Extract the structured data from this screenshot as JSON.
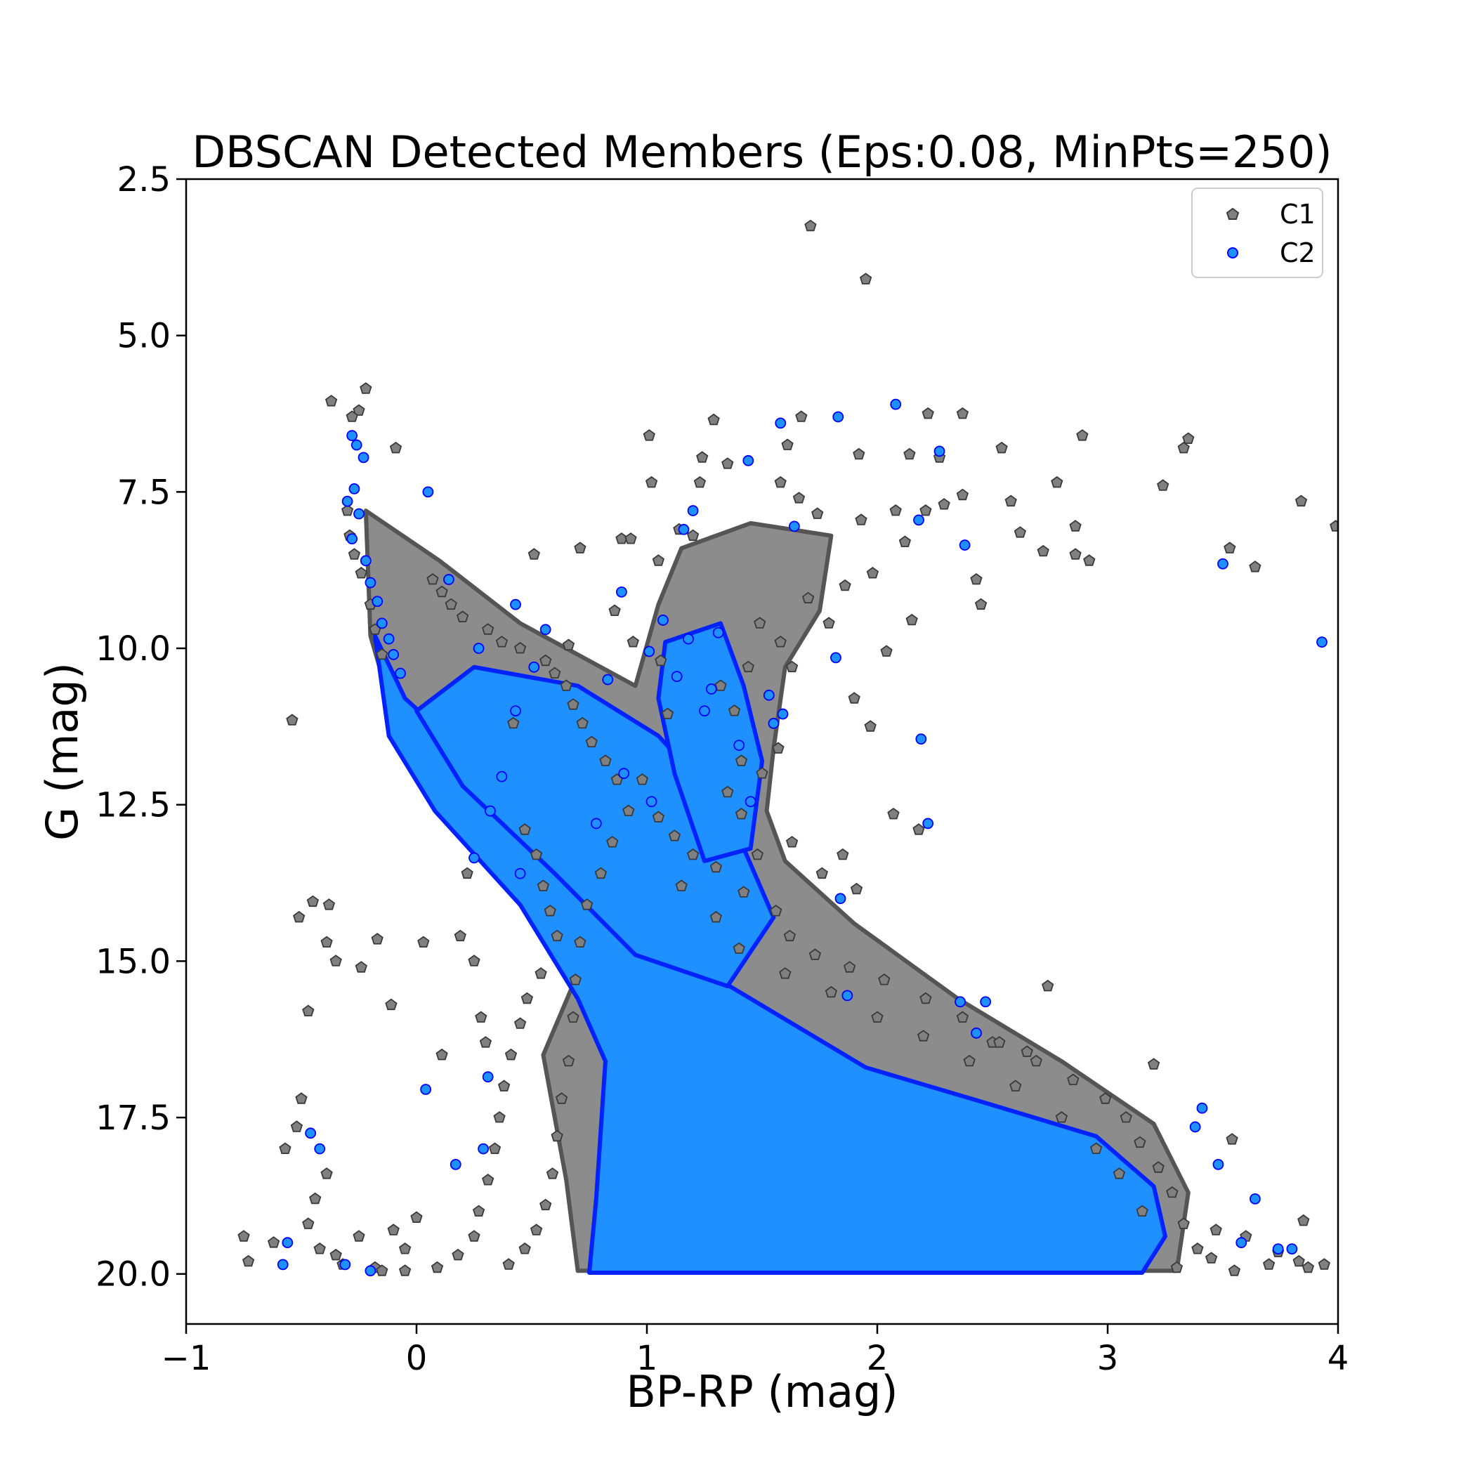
{
  "chart_data": {
    "type": "scatter",
    "title": "DBSCAN Detected Members (Eps:0.08, MinPts=250)",
    "xlabel": "BP-RP (mag)",
    "ylabel": "G (mag)",
    "xlim": [
      -1,
      4
    ],
    "ylim": [
      20.8,
      2.5
    ],
    "y_inverted": true,
    "grid": false,
    "legend_position": "top-right",
    "x_ticks": [
      -1,
      0,
      1,
      2,
      3,
      4
    ],
    "x_tick_labels": [
      "−1",
      "0",
      "1",
      "2",
      "3",
      "4"
    ],
    "y_ticks": [
      2.5,
      5.0,
      7.5,
      10.0,
      12.5,
      15.0,
      17.5,
      20.0
    ],
    "y_tick_labels": [
      "2.5",
      "5.0",
      "7.5",
      "10.0",
      "12.5",
      "15.0",
      "17.5",
      "20.0"
    ],
    "series": [
      {
        "name": "C1",
        "marker": "pentagon",
        "color": "#808080",
        "edgecolor": "#3a3a3a",
        "points": [
          [
            -0.37,
            6.05
          ],
          [
            -0.22,
            5.85
          ],
          [
            -0.25,
            6.2
          ],
          [
            -0.28,
            6.3
          ],
          [
            -0.09,
            6.8
          ],
          [
            1.71,
            3.25
          ],
          [
            1.95,
            4.1
          ],
          [
            1.01,
            6.6
          ],
          [
            1.29,
            6.35
          ],
          [
            1.67,
            6.3
          ],
          [
            2.22,
            6.25
          ],
          [
            2.37,
            6.25
          ],
          [
            2.89,
            6.6
          ],
          [
            3.35,
            6.65
          ],
          [
            3.33,
            6.8
          ],
          [
            2.54,
            6.8
          ],
          [
            1.24,
            6.95
          ],
          [
            1.35,
            7.05
          ],
          [
            1.61,
            6.75
          ],
          [
            1.92,
            6.9
          ],
          [
            2.14,
            6.9
          ],
          [
            2.27,
            6.95
          ],
          [
            1.02,
            7.35
          ],
          [
            1.23,
            7.35
          ],
          [
            1.58,
            7.35
          ],
          [
            3.24,
            7.4
          ],
          [
            2.78,
            7.35
          ],
          [
            3.84,
            7.65
          ],
          [
            3.99,
            8.05
          ],
          [
            2.58,
            7.65
          ],
          [
            2.62,
            8.15
          ],
          [
            2.72,
            8.45
          ],
          [
            2.86,
            8.05
          ],
          [
            2.92,
            8.6
          ],
          [
            2.86,
            8.5
          ],
          [
            3.53,
            8.4
          ],
          [
            3.64,
            8.7
          ],
          [
            0.71,
            8.4
          ],
          [
            0.51,
            8.5
          ],
          [
            0.89,
            8.25
          ],
          [
            1.14,
            8.1
          ],
          [
            1.2,
            8.2
          ],
          [
            2.45,
            9.3
          ],
          [
            2.43,
            8.9
          ],
          [
            2.15,
            9.55
          ],
          [
            0.42,
            11.2
          ],
          [
            0.66,
            9.95
          ],
          [
            2.04,
            10.05
          ],
          [
            1.9,
            10.8
          ],
          [
            1.97,
            11.25
          ],
          [
            2.07,
            12.65
          ],
          [
            2.18,
            12.9
          ],
          [
            1.41,
            12.65
          ],
          [
            1.48,
            13.3
          ],
          [
            1.63,
            13.1
          ],
          [
            1.76,
            13.6
          ],
          [
            1.85,
            13.3
          ],
          [
            1.91,
            13.85
          ],
          [
            -0.54,
            11.15
          ],
          [
            -0.51,
            14.3
          ],
          [
            -0.45,
            14.05
          ],
          [
            -0.38,
            14.1
          ],
          [
            -0.39,
            14.7
          ],
          [
            -0.35,
            15.0
          ],
          [
            -0.17,
            14.65
          ],
          [
            -0.24,
            15.1
          ],
          [
            0.03,
            14.7
          ],
          [
            -0.47,
            15.8
          ],
          [
            -0.11,
            15.7
          ],
          [
            0.11,
            16.5
          ],
          [
            2.5,
            16.3
          ],
          [
            2.65,
            16.45
          ],
          [
            2.74,
            15.4
          ],
          [
            3.2,
            16.65
          ],
          [
            -0.5,
            17.2
          ],
          [
            -0.52,
            17.65
          ],
          [
            -0.57,
            18.0
          ],
          [
            -0.75,
            19.4
          ],
          [
            -0.62,
            19.5
          ],
          [
            -0.73,
            19.8
          ],
          [
            3.54,
            17.85
          ],
          [
            3.85,
            19.15
          ],
          [
            3.94,
            19.85
          ],
          [
            3.87,
            19.9
          ],
          [
            3.74,
            19.65
          ],
          [
            3.83,
            19.8
          ],
          [
            3.47,
            19.3
          ],
          [
            3.55,
            19.95
          ],
          [
            0.93,
            8.25
          ],
          [
            1.05,
            8.6
          ],
          [
            0.86,
            9.4
          ],
          [
            0.94,
            9.9
          ],
          [
            1.06,
            10.2
          ],
          [
            1.09,
            11.05
          ],
          [
            1.66,
            7.6
          ],
          [
            1.74,
            7.85
          ],
          [
            1.93,
            7.95
          ],
          [
            2.08,
            7.8
          ],
          [
            2.12,
            8.3
          ],
          [
            2.21,
            7.8
          ],
          [
            2.29,
            7.7
          ],
          [
            2.37,
            7.55
          ],
          [
            -0.3,
            7.8
          ],
          [
            -0.29,
            8.2
          ],
          [
            -0.27,
            8.5
          ],
          [
            -0.24,
            8.8
          ],
          [
            -0.2,
            9.3
          ],
          [
            -0.18,
            9.7
          ],
          [
            -0.15,
            10.1
          ],
          [
            0.07,
            8.9
          ],
          [
            0.11,
            9.1
          ],
          [
            0.15,
            9.3
          ],
          [
            0.2,
            9.5
          ],
          [
            0.31,
            9.7
          ],
          [
            0.37,
            9.9
          ],
          [
            0.45,
            10.0
          ],
          [
            0.56,
            10.2
          ],
          [
            0.6,
            10.4
          ],
          [
            0.65,
            10.6
          ],
          [
            0.68,
            10.9
          ],
          [
            0.72,
            11.2
          ],
          [
            0.76,
            11.5
          ],
          [
            0.82,
            11.8
          ],
          [
            0.87,
            12.1
          ],
          [
            1.05,
            12.7
          ],
          [
            1.12,
            13.0
          ],
          [
            1.2,
            13.3
          ],
          [
            1.3,
            13.5
          ],
          [
            1.42,
            13.9
          ],
          [
            1.56,
            14.2
          ],
          [
            1.62,
            14.6
          ],
          [
            1.73,
            14.9
          ],
          [
            1.88,
            15.1
          ],
          [
            2.03,
            15.3
          ],
          [
            2.21,
            15.6
          ],
          [
            2.37,
            15.9
          ],
          [
            2.53,
            16.3
          ],
          [
            2.69,
            16.6
          ],
          [
            2.85,
            16.9
          ],
          [
            2.99,
            17.2
          ],
          [
            3.08,
            17.5
          ],
          [
            3.14,
            17.9
          ],
          [
            3.22,
            18.3
          ],
          [
            3.28,
            18.7
          ],
          [
            3.33,
            19.2
          ],
          [
            3.39,
            19.6
          ],
          [
            3.3,
            19.9
          ],
          [
            0.47,
            12.9
          ],
          [
            0.52,
            13.3
          ],
          [
            0.55,
            13.8
          ],
          [
            0.58,
            14.2
          ],
          [
            0.61,
            14.6
          ],
          [
            0.54,
            15.2
          ],
          [
            0.48,
            15.6
          ],
          [
            0.45,
            16.0
          ],
          [
            0.41,
            16.5
          ],
          [
            0.38,
            17.0
          ],
          [
            0.36,
            17.5
          ],
          [
            0.34,
            18.0
          ],
          [
            0.31,
            18.5
          ],
          [
            0.27,
            19.0
          ],
          [
            0.25,
            19.4
          ],
          [
            0.18,
            19.7
          ],
          [
            0.09,
            19.9
          ],
          [
            -0.05,
            19.95
          ],
          [
            -0.18,
            19.9
          ],
          [
            -0.32,
            19.85
          ],
          [
            -0.42,
            19.6
          ],
          [
            -0.47,
            19.2
          ],
          [
            -0.44,
            18.8
          ],
          [
            -0.39,
            18.4
          ],
          [
            0.28,
            15.9
          ],
          [
            0.3,
            16.3
          ],
          [
            0.25,
            15.0
          ],
          [
            0.19,
            14.6
          ],
          [
            0.22,
            13.6
          ],
          [
            1.32,
            10.6
          ],
          [
            1.38,
            11.0
          ],
          [
            1.41,
            11.8
          ],
          [
            1.35,
            12.3
          ],
          [
            1.5,
            12.0
          ],
          [
            1.57,
            11.6
          ],
          [
            1.44,
            10.3
          ],
          [
            1.49,
            9.6
          ],
          [
            1.58,
            9.9
          ],
          [
            1.63,
            10.3
          ],
          [
            1.7,
            9.2
          ],
          [
            1.79,
            9.6
          ],
          [
            1.86,
            9.0
          ],
          [
            1.98,
            8.8
          ],
          [
            0.98,
            12.1
          ],
          [
            0.92,
            12.6
          ],
          [
            0.85,
            13.1
          ],
          [
            0.8,
            13.6
          ],
          [
            0.74,
            14.1
          ],
          [
            0.71,
            14.7
          ],
          [
            0.69,
            15.3
          ],
          [
            0.68,
            15.9
          ],
          [
            0.66,
            16.6
          ],
          [
            0.63,
            17.2
          ],
          [
            0.61,
            17.8
          ],
          [
            0.59,
            18.4
          ],
          [
            0.56,
            18.9
          ],
          [
            0.52,
            19.3
          ],
          [
            0.47,
            19.6
          ],
          [
            0.4,
            19.85
          ],
          [
            -0.05,
            19.6
          ],
          [
            -0.1,
            19.3
          ],
          [
            0.0,
            19.1
          ],
          [
            -0.25,
            19.4
          ],
          [
            -0.35,
            19.7
          ],
          [
            -0.15,
            19.95
          ],
          [
            3.6,
            19.4
          ],
          [
            3.7,
            19.85
          ],
          [
            3.45,
            19.75
          ],
          [
            2.95,
            18.0
          ],
          [
            3.05,
            18.4
          ],
          [
            3.15,
            19.0
          ],
          [
            2.8,
            17.5
          ],
          [
            2.6,
            17.0
          ],
          [
            2.4,
            16.6
          ],
          [
            2.2,
            16.2
          ],
          [
            2.0,
            15.9
          ],
          [
            1.8,
            15.5
          ],
          [
            1.6,
            15.2
          ],
          [
            1.4,
            14.8
          ],
          [
            1.3,
            14.3
          ],
          [
            1.15,
            13.8
          ]
        ]
      },
      {
        "name": "C2",
        "marker": "circle",
        "color": "#1e90ff",
        "edgecolor": "#0000ff",
        "points": [
          [
            -0.28,
            6.6
          ],
          [
            -0.26,
            6.75
          ],
          [
            -0.23,
            6.95
          ],
          [
            -0.3,
            7.65
          ],
          [
            -0.27,
            7.45
          ],
          [
            -0.25,
            7.85
          ],
          [
            -0.28,
            8.25
          ],
          [
            -0.22,
            8.6
          ],
          [
            -0.2,
            8.95
          ],
          [
            -0.17,
            9.25
          ],
          [
            -0.15,
            9.6
          ],
          [
            -0.12,
            9.85
          ],
          [
            -0.1,
            10.1
          ],
          [
            -0.07,
            10.4
          ],
          [
            0.05,
            7.5
          ],
          [
            1.58,
            6.4
          ],
          [
            1.83,
            6.3
          ],
          [
            2.08,
            6.1
          ],
          [
            2.27,
            6.85
          ],
          [
            1.44,
            7.0
          ],
          [
            1.2,
            7.8
          ],
          [
            1.16,
            8.1
          ],
          [
            1.64,
            8.05
          ],
          [
            2.38,
            8.35
          ],
          [
            0.43,
            9.3
          ],
          [
            0.89,
            9.1
          ],
          [
            0.14,
            8.9
          ],
          [
            3.5,
            8.65
          ],
          [
            3.93,
            9.9
          ],
          [
            1.82,
            10.15
          ],
          [
            2.19,
            11.45
          ],
          [
            2.22,
            12.8
          ],
          [
            2.18,
            7.95
          ],
          [
            0.04,
            17.05
          ],
          [
            -0.46,
            17.75
          ],
          [
            -0.42,
            18.0
          ],
          [
            -0.56,
            19.5
          ],
          [
            -0.58,
            19.85
          ],
          [
            -0.31,
            19.85
          ],
          [
            -0.2,
            19.95
          ],
          [
            3.41,
            17.35
          ],
          [
            3.38,
            17.65
          ],
          [
            3.48,
            18.25
          ],
          [
            3.64,
            18.8
          ],
          [
            3.74,
            19.6
          ],
          [
            3.58,
            19.5
          ],
          [
            3.8,
            19.6
          ],
          [
            0.31,
            16.85
          ],
          [
            0.29,
            18.0
          ],
          [
            0.17,
            18.25
          ],
          [
            0.25,
            13.35
          ],
          [
            0.45,
            13.6
          ],
          [
            2.47,
            15.65
          ],
          [
            2.43,
            16.15
          ],
          [
            2.36,
            15.65
          ],
          [
            1.87,
            15.55
          ],
          [
            1.84,
            14.0
          ],
          [
            1.45,
            12.45
          ],
          [
            1.4,
            11.55
          ],
          [
            1.55,
            11.2
          ],
          [
            1.53,
            10.75
          ],
          [
            1.59,
            11.05
          ],
          [
            1.18,
            9.85
          ],
          [
            1.13,
            10.45
          ],
          [
            1.31,
            9.75
          ],
          [
            1.28,
            10.65
          ],
          [
            1.25,
            11.0
          ],
          [
            1.07,
            9.55
          ],
          [
            1.01,
            10.05
          ],
          [
            0.83,
            10.5
          ],
          [
            0.56,
            9.7
          ],
          [
            0.51,
            10.3
          ],
          [
            0.27,
            10.0
          ],
          [
            0.43,
            11.0
          ],
          [
            0.37,
            12.05
          ],
          [
            0.32,
            12.6
          ],
          [
            0.9,
            12.0
          ],
          [
            1.02,
            12.45
          ],
          [
            0.78,
            12.8
          ]
        ]
      }
    ]
  }
}
